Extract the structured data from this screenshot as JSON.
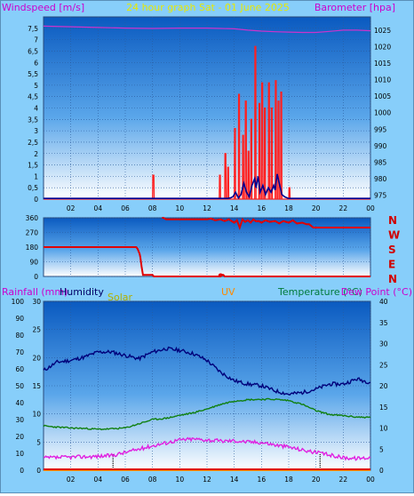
{
  "header": {
    "windspeed_label": "Windspeed [m/s]",
    "title": "24 hour graph Sat - 01 June 2025",
    "barometer_label": "Barometer [hpa]"
  },
  "panel2_labels": {
    "rainfall": "Rainfall (mm)",
    "humidity": "Humidity",
    "solar": "Solar",
    "uv": "UV",
    "temperature": "Temperature (°C)",
    "dew_point": "Dew Point (°C)"
  },
  "colors": {
    "background": "#87cefa",
    "plot_top": "#0a64c8",
    "plot_bottom": "#ffffff",
    "gust": "#ff2020",
    "avg_wind": "#000090",
    "barometer": "#cc33cc",
    "direction": "#e00000",
    "humidity": "#00007a",
    "temperature": "#108010",
    "dew_point": "#e020e0",
    "rainfall": "#e00000",
    "solar": "#d8d800",
    "uv": "#ff8800",
    "dir_labels": "#d00000",
    "left_labels": "#cc00cc",
    "title": "#e8e800",
    "temp_label": "#007a3a",
    "axis_text": "#000000"
  },
  "chart_data": [
    {
      "type": "line",
      "id": "wind",
      "title": "24 hour graph Sat - 01 June 2025",
      "ylabel": "Windspeed [m/s]",
      "y2label": "Barometer [hpa]",
      "x_ticks": [
        "02",
        "04",
        "06",
        "08",
        "10",
        "12",
        "14",
        "16",
        "18",
        "20",
        "22",
        "00"
      ],
      "y_ticks": [
        "0",
        "0,5",
        "1",
        "1,5",
        "2",
        "2,5",
        "3",
        "3,5",
        "4",
        "4,5",
        "5",
        "5,5",
        "6",
        "6,5",
        "7",
        "7,5"
      ],
      "y2_ticks": [
        "975",
        "980",
        "985",
        "990",
        "995",
        "1000",
        "1005",
        "1010",
        "1015",
        "1020",
        "1025"
      ],
      "ylim": [
        0,
        8
      ],
      "y2lim": [
        973.8,
        1029
      ],
      "xlim": [
        0,
        24
      ],
      "series": [
        {
          "axis": "left",
          "style": "gust",
          "x": [
            0,
            8.0,
            8.02,
            8.1,
            8.12,
            12.9,
            12.92,
            12.98,
            13.0,
            13.3,
            13.32,
            13.38,
            13.4,
            13.5,
            13.52,
            13.58,
            13.6,
            14.0,
            14.02,
            14.08,
            14.1,
            14.3,
            14.32,
            14.38,
            14.4,
            14.6,
            14.62,
            14.68,
            14.7,
            14.8,
            14.82,
            14.88,
            14.9,
            15.0,
            15.02,
            15.08,
            15.1,
            15.2,
            15.22,
            15.28,
            15.3,
            15.5,
            15.52,
            15.58,
            15.6,
            15.8,
            15.82,
            15.88,
            15.9,
            16.0,
            16.02,
            16.08,
            16.1,
            16.2,
            16.22,
            16.28,
            16.3,
            16.5,
            16.52,
            16.58,
            16.6,
            16.7,
            16.72,
            16.78,
            16.8,
            17.0,
            17.02,
            17.08,
            17.1,
            17.2,
            17.22,
            17.28,
            17.3,
            17.4,
            17.42,
            17.48,
            17.5,
            18.0,
            18.02,
            18.08,
            18.1,
            24
          ],
          "y": [
            0,
            0,
            1.05,
            1.05,
            0,
            0,
            1.05,
            1.05,
            0,
            0,
            2.0,
            2.0,
            0,
            0,
            1.4,
            1.4,
            0,
            0,
            3.1,
            3.1,
            0,
            0,
            4.6,
            4.6,
            0,
            0,
            2.8,
            2.8,
            0,
            0,
            4.3,
            4.3,
            0,
            0,
            2.1,
            2.1,
            0,
            0,
            3.5,
            3.5,
            0,
            0,
            6.7,
            6.7,
            0,
            0,
            4.2,
            4.2,
            0,
            0,
            5.1,
            5.1,
            0,
            0,
            4.0,
            4.0,
            0,
            0,
            5.1,
            5.1,
            0,
            0,
            4.0,
            4.0,
            0,
            0,
            5.2,
            5.2,
            0,
            0,
            4.3,
            4.3,
            0,
            0,
            4.7,
            4.7,
            0,
            0,
            0.5,
            0.5,
            0,
            0
          ]
        },
        {
          "axis": "left",
          "style": "avg",
          "x": [
            0,
            13.5,
            13.7,
            13.9,
            14.1,
            14.3,
            14.5,
            14.7,
            14.9,
            15.1,
            15.3,
            15.5,
            15.6,
            15.75,
            15.9,
            16.1,
            16.3,
            16.5,
            16.7,
            16.9,
            17.0,
            17.15,
            17.3,
            17.5,
            17.7,
            17.9,
            18.0,
            24
          ],
          "y": [
            0.03,
            0.03,
            0.05,
            0.1,
            0.3,
            0.05,
            0.2,
            0.7,
            0.3,
            0.1,
            0.6,
            0.9,
            0.5,
            1.0,
            0.3,
            0.6,
            0.2,
            0.5,
            0.3,
            0.6,
            0.4,
            1.1,
            0.7,
            0.2,
            0.1,
            0.05,
            0.03,
            0.03
          ]
        },
        {
          "axis": "right",
          "style": "baro",
          "x": [
            0,
            2,
            4,
            6,
            8,
            10,
            12,
            13,
            14,
            15,
            16,
            17,
            18,
            19,
            20,
            21,
            22,
            23,
            24
          ],
          "y": [
            1026.2,
            1026.0,
            1025.8,
            1025.6,
            1025.5,
            1025.6,
            1025.6,
            1025.5,
            1025.4,
            1025.0,
            1024.7,
            1024.5,
            1024.4,
            1024.3,
            1024.3,
            1024.6,
            1025.0,
            1025.0,
            1024.8
          ]
        }
      ]
    },
    {
      "type": "line",
      "id": "direction",
      "y_ticks": [
        "0",
        "90",
        "180",
        "270",
        "360"
      ],
      "dir_labels": [
        "N",
        "W",
        "S",
        "E",
        "N"
      ],
      "ylim": [
        0,
        360
      ],
      "xlim": [
        0,
        24
      ],
      "series": [
        {
          "style": "dir",
          "x": [
            0,
            6.5,
            6.8,
            6.9,
            7.0,
            7.05,
            7.1,
            7.2,
            7.3,
            8.0,
            8.1,
            8.2,
            8.3,
            13.0,
            13.1,
            13.2,
            13.3,
            24
          ],
          "y": [
            180,
            180,
            180,
            170,
            150,
            140,
            120,
            60,
            10,
            10,
            0,
            0,
            0,
            0,
            10,
            10,
            0,
            0
          ]
        },
        {
          "style": "dir",
          "x": [
            8.7,
            8.8,
            9.0,
            12.0,
            12.3,
            12.6,
            13.0,
            13.3,
            13.6,
            14.0,
            14.2,
            14.4,
            14.6,
            14.8,
            15.0,
            15.2,
            15.4,
            15.6,
            15.8,
            16.0,
            16.3,
            16.6,
            17.0,
            17.3,
            17.6,
            18.0,
            18.3,
            18.6,
            19.0,
            19.3,
            19.5,
            19.8,
            20.0,
            20.2,
            20.5,
            22.0,
            24
          ],
          "y": [
            360,
            360,
            350,
            350,
            355,
            345,
            350,
            340,
            350,
            330,
            345,
            300,
            350,
            335,
            345,
            330,
            350,
            338,
            340,
            330,
            345,
            335,
            340,
            325,
            340,
            330,
            345,
            325,
            330,
            320,
            320,
            300,
            300,
            300,
            300,
            300,
            300
          ]
        }
      ]
    },
    {
      "type": "line",
      "id": "temp",
      "title": "",
      "y_ticks_left": [
        "0",
        "10",
        "20",
        "30",
        "40",
        "50",
        "60",
        "70",
        "80",
        "90",
        "100"
      ],
      "y_ticks_inner": [
        "0",
        "5",
        "10",
        "15",
        "20",
        "25",
        "30"
      ],
      "y_ticks_right": [
        "0",
        "5",
        "10",
        "15",
        "20",
        "25",
        "30",
        "35",
        "40"
      ],
      "ylim": [
        0,
        100
      ],
      "y_inner_lim": [
        0,
        30
      ],
      "y_right_lim": [
        0,
        40
      ],
      "xlim": [
        0,
        24
      ],
      "series": [
        {
          "name": "Humidity",
          "axis": "left",
          "x": [
            0,
            1,
            2,
            3,
            4,
            5,
            6,
            7,
            8,
            9,
            10,
            11,
            12,
            13,
            14,
            15,
            16,
            17,
            18,
            19,
            20,
            21,
            22,
            23,
            24
          ],
          "y": [
            59,
            64,
            65,
            67,
            70,
            70,
            68,
            66,
            70,
            72,
            71,
            69,
            65,
            58,
            53,
            51,
            50,
            47,
            45,
            46,
            48,
            51,
            51,
            54,
            52
          ]
        },
        {
          "name": "Temperature (°C)",
          "axis": "right",
          "x": [
            0,
            1,
            2,
            3,
            4,
            5,
            6,
            7,
            8,
            9,
            10,
            11,
            12,
            13,
            14,
            15,
            16,
            17,
            18,
            19,
            20,
            21,
            22,
            23,
            24
          ],
          "y": [
            10.5,
            10.2,
            10.0,
            9.9,
            9.7,
            9.8,
            10.0,
            11.0,
            12.0,
            12.3,
            13.0,
            13.6,
            14.5,
            15.6,
            16.4,
            16.7,
            16.8,
            16.8,
            16.5,
            15.6,
            14.1,
            13.2,
            12.9,
            12.6,
            12.5
          ]
        },
        {
          "name": "Dew Point (°C)",
          "axis": "right",
          "x": [
            0,
            1,
            2,
            3,
            4,
            5,
            6,
            7,
            8,
            9,
            10,
            11,
            12,
            13,
            14,
            15,
            16,
            17,
            18,
            19,
            20,
            21,
            22,
            23,
            24
          ],
          "y": [
            2.9,
            3.0,
            3.1,
            3.2,
            3.3,
            3.5,
            4.2,
            5.0,
            5.8,
            6.5,
            7.2,
            7.4,
            7.2,
            6.9,
            7.0,
            6.7,
            6.6,
            6.0,
            5.5,
            4.8,
            4.2,
            3.6,
            3.0,
            2.8,
            3.0
          ]
        },
        {
          "name": "Rainfall (mm)",
          "axis": "left",
          "x": [
            0,
            24
          ],
          "y": [
            0.5,
            0.5
          ]
        },
        {
          "name": "Solar",
          "axis": "left",
          "x": [
            0,
            24
          ],
          "y": [
            0,
            0
          ]
        },
        {
          "name": "UV",
          "axis": "left",
          "x": [
            0,
            24
          ],
          "y": [
            0,
            0
          ]
        }
      ],
      "markers": [
        5.1,
        20.3
      ]
    }
  ]
}
